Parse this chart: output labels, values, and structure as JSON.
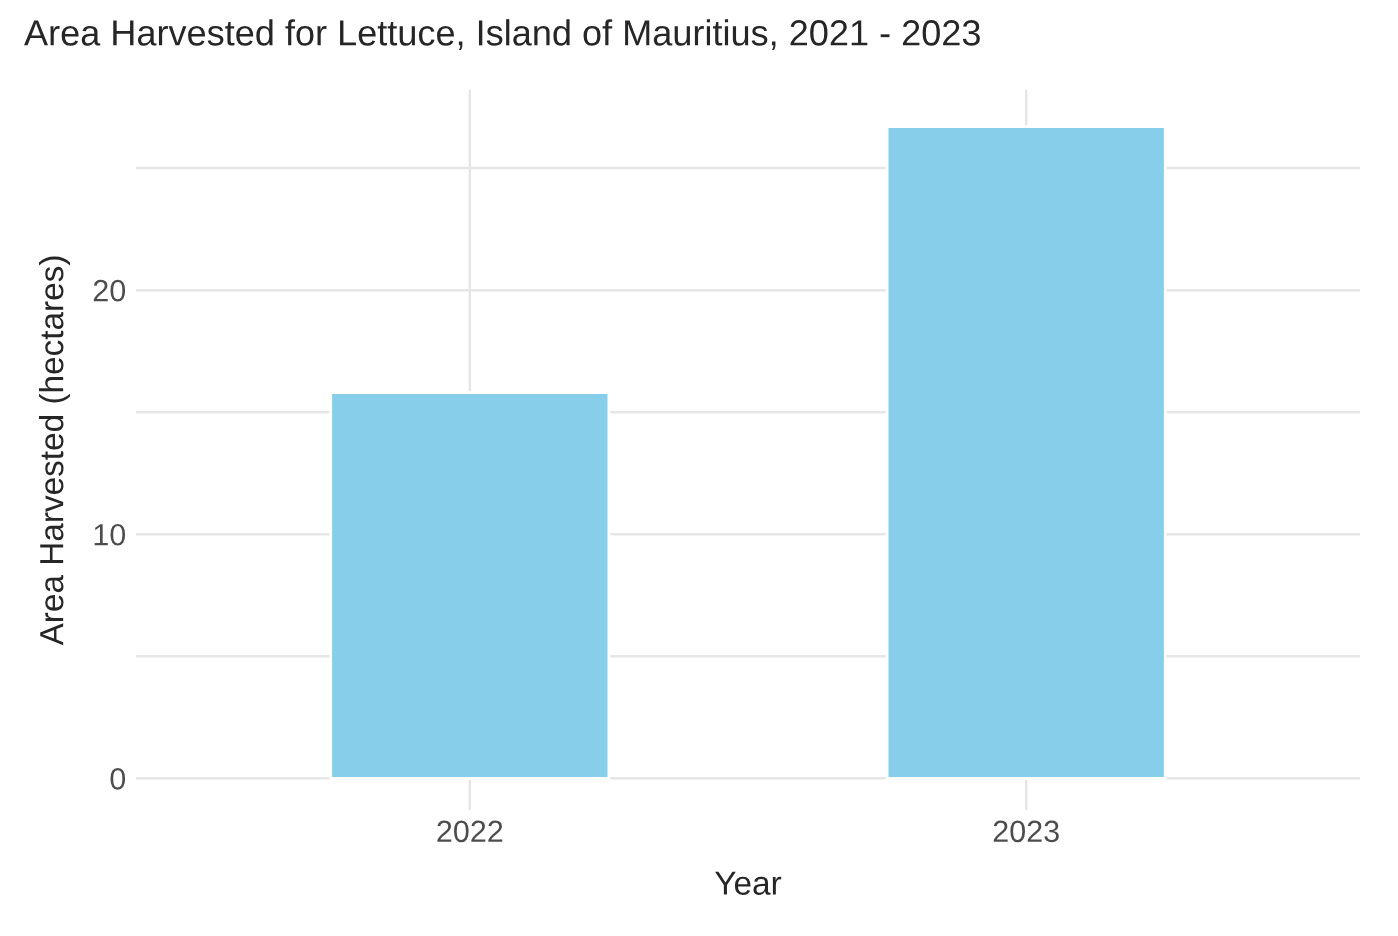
{
  "chart_data": {
    "type": "bar",
    "title": "Area Harvested for Lettuce, Island of Mauritius, 2021 - 2023",
    "xlabel": "Year",
    "ylabel": "Area Harvested (hectares)",
    "categories": [
      "2022",
      "2023"
    ],
    "series": [
      {
        "color": "#87ceeb",
        "values": [
          15.8,
          26.7
        ]
      }
    ],
    "ylim": [
      -1.3,
      28.2
    ],
    "yticks": [
      0,
      {
        "value": 5,
        "label": null
      },
      10,
      {
        "value": 15,
        "label": null
      },
      20,
      {
        "value": 25,
        "label": null
      }
    ],
    "grid": true,
    "legend": false
  }
}
